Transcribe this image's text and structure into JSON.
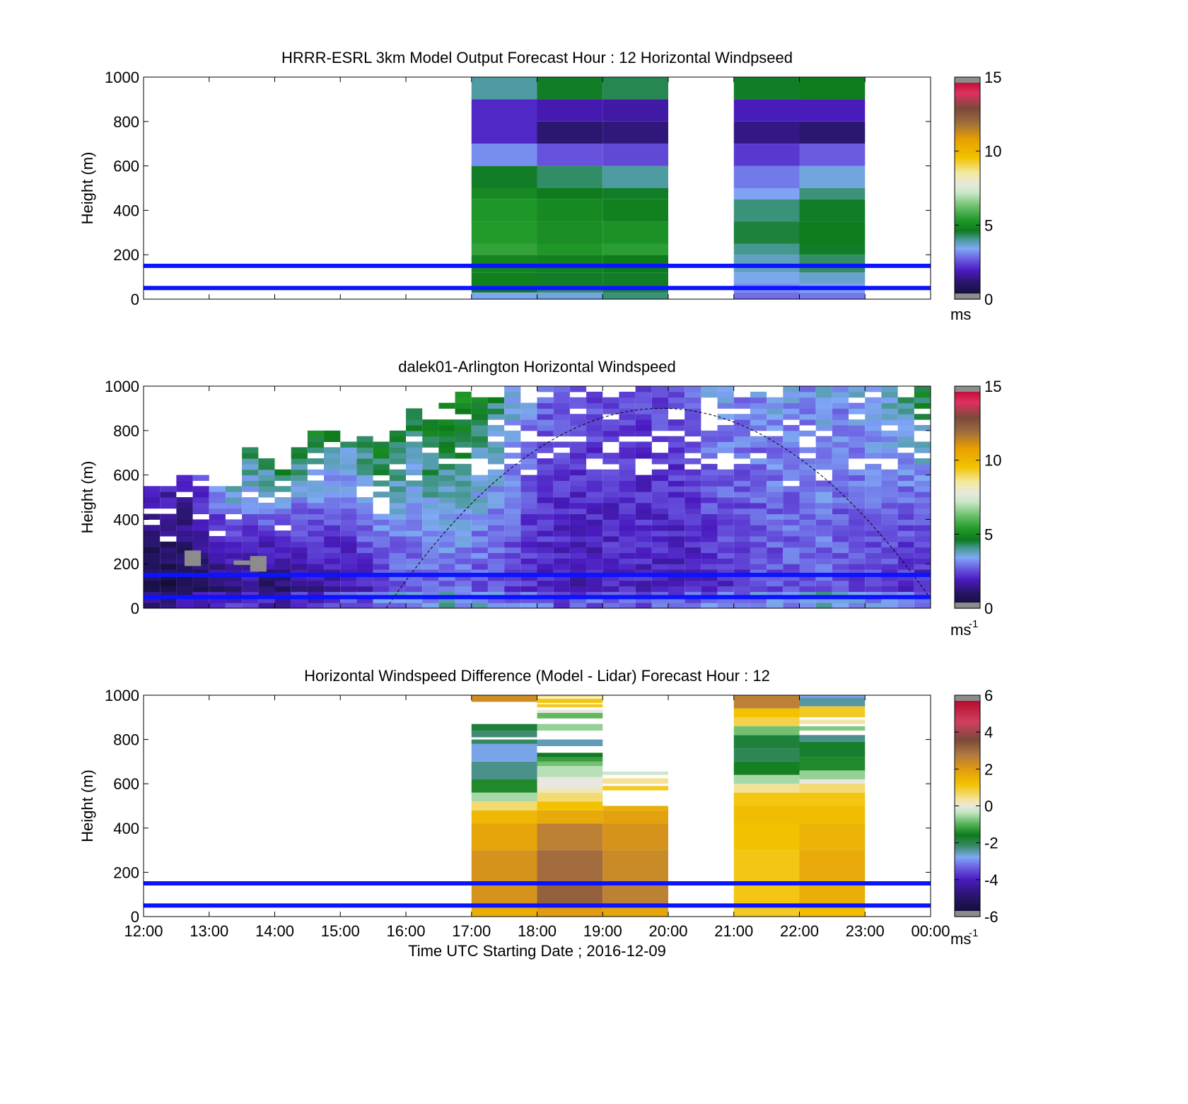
{
  "chart_data": [
    {
      "type": "heatmap",
      "title": "HRRR-ESRL 3km Model Output   Forecast Hour : 12 Horizontal Windpseed",
      "ylabel": "Height (m)",
      "xlim": [
        12,
        24
      ],
      "ylim": [
        0,
        1000
      ],
      "y_ticks": [
        "0",
        "200",
        "400",
        "600",
        "800",
        "1000"
      ],
      "colorbar": {
        "min": 0,
        "max": 15,
        "ticks": [
          "0",
          "5",
          "10",
          "15"
        ],
        "units": "ms"
      },
      "reference_lines_m": [
        50,
        150
      ],
      "columns": [
        {
          "time_start": 17,
          "time_end": 18,
          "rows": [
            {
              "z0": 0,
              "z1": 30,
              "v": 3.5
            },
            {
              "z0": 30,
              "z1": 60,
              "v": 4.7
            },
            {
              "z0": 60,
              "z1": 120,
              "v": 4.8
            },
            {
              "z0": 120,
              "z1": 200,
              "v": 4.9
            },
            {
              "z0": 200,
              "z1": 250,
              "v": 5.6
            },
            {
              "z0": 250,
              "z1": 350,
              "v": 5.4
            },
            {
              "z0": 350,
              "z1": 450,
              "v": 5.3
            },
            {
              "z0": 450,
              "z1": 500,
              "v": 5.0
            },
            {
              "z0": 500,
              "z1": 600,
              "v": 4.6
            },
            {
              "z0": 600,
              "z1": 700,
              "v": 3.2
            },
            {
              "z0": 700,
              "z1": 900,
              "v": 2.1
            },
            {
              "z0": 900,
              "z1": 1000,
              "v": 4.0
            }
          ]
        },
        {
          "time_start": 18,
          "time_end": 19,
          "rows": [
            {
              "z0": 0,
              "z1": 30,
              "v": 3.6
            },
            {
              "z0": 30,
              "z1": 60,
              "v": 4.3
            },
            {
              "z0": 60,
              "z1": 120,
              "v": 4.6
            },
            {
              "z0": 120,
              "z1": 200,
              "v": 4.8
            },
            {
              "z0": 200,
              "z1": 250,
              "v": 5.3
            },
            {
              "z0": 250,
              "z1": 350,
              "v": 5.1
            },
            {
              "z0": 350,
              "z1": 450,
              "v": 5.0
            },
            {
              "z0": 450,
              "z1": 500,
              "v": 4.7
            },
            {
              "z0": 500,
              "z1": 600,
              "v": 4.3
            },
            {
              "z0": 600,
              "z1": 700,
              "v": 2.6
            },
            {
              "z0": 700,
              "z1": 800,
              "v": 1.2
            },
            {
              "z0": 800,
              "z1": 900,
              "v": 1.8
            },
            {
              "z0": 900,
              "z1": 1000,
              "v": 4.6
            }
          ]
        },
        {
          "time_start": 19,
          "time_end": 20,
          "rows": [
            {
              "z0": 0,
              "z1": 30,
              "v": 4.2
            },
            {
              "z0": 30,
              "z1": 60,
              "v": 4.5
            },
            {
              "z0": 60,
              "z1": 120,
              "v": 4.6
            },
            {
              "z0": 120,
              "z1": 200,
              "v": 4.7
            },
            {
              "z0": 200,
              "z1": 250,
              "v": 5.5
            },
            {
              "z0": 250,
              "z1": 350,
              "v": 5.2
            },
            {
              "z0": 350,
              "z1": 450,
              "v": 4.8
            },
            {
              "z0": 450,
              "z1": 500,
              "v": 4.6
            },
            {
              "z0": 500,
              "z1": 600,
              "v": 4.0
            },
            {
              "z0": 600,
              "z1": 700,
              "v": 2.5
            },
            {
              "z0": 700,
              "z1": 800,
              "v": 1.3
            },
            {
              "z0": 800,
              "z1": 900,
              "v": 1.7
            },
            {
              "z0": 900,
              "z1": 1000,
              "v": 4.4
            }
          ]
        },
        {
          "time_start": 21,
          "time_end": 22,
          "rows": [
            {
              "z0": 0,
              "z1": 30,
              "v": 2.9
            },
            {
              "z0": 30,
              "z1": 70,
              "v": 3.2
            },
            {
              "z0": 70,
              "z1": 120,
              "v": 3.5
            },
            {
              "z0": 120,
              "z1": 200,
              "v": 3.8
            },
            {
              "z0": 200,
              "z1": 250,
              "v": 4.1
            },
            {
              "z0": 250,
              "z1": 350,
              "v": 4.5
            },
            {
              "z0": 350,
              "z1": 450,
              "v": 4.2
            },
            {
              "z0": 450,
              "z1": 500,
              "v": 3.4
            },
            {
              "z0": 500,
              "z1": 600,
              "v": 3.0
            },
            {
              "z0": 600,
              "z1": 700,
              "v": 2.3
            },
            {
              "z0": 700,
              "z1": 800,
              "v": 1.4
            },
            {
              "z0": 800,
              "z1": 900,
              "v": 1.9
            },
            {
              "z0": 900,
              "z1": 1000,
              "v": 4.6
            }
          ]
        },
        {
          "time_start": 22,
          "time_end": 23,
          "rows": [
            {
              "z0": 0,
              "z1": 30,
              "v": 3.0
            },
            {
              "z0": 30,
              "z1": 70,
              "v": 3.4
            },
            {
              "z0": 70,
              "z1": 120,
              "v": 3.7
            },
            {
              "z0": 120,
              "z1": 200,
              "v": 4.3
            },
            {
              "z0": 200,
              "z1": 250,
              "v": 4.6
            },
            {
              "z0": 250,
              "z1": 350,
              "v": 4.7
            },
            {
              "z0": 350,
              "z1": 450,
              "v": 4.6
            },
            {
              "z0": 450,
              "z1": 500,
              "v": 4.2
            },
            {
              "z0": 500,
              "z1": 600,
              "v": 3.6
            },
            {
              "z0": 600,
              "z1": 700,
              "v": 2.7
            },
            {
              "z0": 700,
              "z1": 800,
              "v": 1.2
            },
            {
              "z0": 800,
              "z1": 900,
              "v": 1.9
            },
            {
              "z0": 900,
              "z1": 1000,
              "v": 4.7
            }
          ]
        }
      ]
    },
    {
      "type": "heatmap",
      "title": "dalek01-Arlington  Horizontal Windspeed",
      "ylabel": "Height (m)",
      "xlim": [
        12,
        24
      ],
      "ylim": [
        0,
        1000
      ],
      "y_ticks": [
        "0",
        "200",
        "400",
        "600",
        "800",
        "1000"
      ],
      "colorbar": {
        "min": 0,
        "max": 15,
        "ticks": [
          "0",
          "5",
          "10",
          "15"
        ],
        "units": "ms",
        "units_superscript": "-1"
      },
      "reference_lines_m": [
        50,
        150
      ],
      "profile_interval_hours": 0.25,
      "max_height_per_profile_m": [
        540,
        535,
        585,
        590,
        530,
        550,
        705,
        665,
        620,
        710,
        780,
        790,
        790,
        790,
        730,
        800,
        880,
        850,
        910,
        960,
        965,
        960,
        980,
        985,
        990,
        1000,
        995,
        995,
        990,
        995,
        1000,
        1000,
        1000,
        1000,
        990,
        985,
        980,
        990,
        1000,
        995,
        1000,
        1000,
        1000,
        1000,
        1000,
        1000,
        1000,
        1000
      ],
      "low_level_speed_per_profile_ms": [
        0.6,
        0.5,
        0.6,
        0.8,
        1.0,
        1.2,
        1.3,
        1.0,
        1.1,
        1.2,
        1.4,
        1.5,
        1.6,
        1.9,
        2.1,
        2.4,
        2.6,
        2.7,
        2.8,
        2.7,
        2.6,
        2.5,
        2.3,
        2.1,
        2.0,
        1.9,
        1.8,
        1.9,
        2.0,
        2.1,
        2.0,
        2.0,
        1.9,
        2.0,
        2.1,
        2.2,
        2.3,
        2.4,
        2.5,
        2.6,
        2.7,
        2.8,
        2.6,
        2.5,
        2.3,
        2.2,
        2.1,
        2.0
      ],
      "upper_level_speed_per_profile_ms": [
        1.8,
        2.0,
        2.2,
        2.6,
        3.2,
        4.0,
        4.5,
        4.6,
        4.4,
        4.7,
        4.8,
        4.6,
        4.3,
        4.6,
        4.9,
        4.8,
        4.5,
        5.0,
        5.2,
        5.4,
        4.9,
        4.4,
        3.8,
        3.3,
        2.9,
        2.8,
        2.7,
        2.6,
        2.5,
        2.4,
        2.4,
        2.6,
        2.7,
        3.0,
        3.3,
        3.4,
        3.2,
        3.3,
        3.5,
        3.4,
        3.2,
        3.5,
        3.3,
        3.6,
        3.8,
        4.0,
        4.3,
        4.8
      ],
      "missing_data_patches": [
        {
          "time": 12.75,
          "z0": 190,
          "z1": 260
        },
        {
          "time": 13.5,
          "z0": 195,
          "z1": 215
        },
        {
          "time": 13.75,
          "z0": 165,
          "z1": 235
        }
      ],
      "solar_elevation_curve_peak": {
        "time": 19.9,
        "height_m": 900
      }
    },
    {
      "type": "heatmap",
      "title": "Horizontal Windspeed Difference (Model - Lidar) Forecast Hour : 12",
      "xlabel": "Time UTC  Starting Date ; 2016-12-09",
      "ylabel": "Height (m)",
      "x_ticks": [
        "12:00",
        "13:00",
        "14:00",
        "15:00",
        "16:00",
        "17:00",
        "18:00",
        "19:00",
        "20:00",
        "21:00",
        "22:00",
        "23:00",
        "00:00"
      ],
      "xlim": [
        12,
        24
      ],
      "ylim": [
        0,
        1000
      ],
      "y_ticks": [
        "0",
        "200",
        "400",
        "600",
        "800",
        "1000"
      ],
      "colorbar": {
        "min": -6,
        "max": 6,
        "ticks": [
          "-6",
          "-4",
          "-2",
          "0",
          "2",
          "4",
          "6"
        ],
        "units": "ms",
        "units_superscript": "-1"
      },
      "reference_lines_m": [
        50,
        150
      ],
      "columns": [
        {
          "time_start": 17,
          "time_end": 18,
          "rows": [
            {
              "z0": 0,
              "z1": 40,
              "v": 1.6
            },
            {
              "z0": 40,
              "z1": 150,
              "v": 2.2
            },
            {
              "z0": 150,
              "z1": 300,
              "v": 2.2
            },
            {
              "z0": 300,
              "z1": 420,
              "v": 1.8
            },
            {
              "z0": 420,
              "z1": 480,
              "v": 1.4
            },
            {
              "z0": 480,
              "z1": 520,
              "v": 0.6
            },
            {
              "z0": 520,
              "z1": 560,
              "v": -0.5
            },
            {
              "z0": 560,
              "z1": 620,
              "v": -1.4
            },
            {
              "z0": 620,
              "z1": 700,
              "v": -2.3
            },
            {
              "z0": 700,
              "z1": 780,
              "v": -2.7
            },
            {
              "z0": 780,
              "z1": 800,
              "v": -2.1
            },
            {
              "z0": 810,
              "z1": 840,
              "v": -2.2
            },
            {
              "z0": 840,
              "z1": 870,
              "v": -1.8
            },
            {
              "z0": 970,
              "z1": 1000,
              "v": 2.3
            }
          ]
        },
        {
          "time_start": 18,
          "time_end": 19,
          "rows": [
            {
              "z0": 0,
              "z1": 40,
              "v": 2.0
            },
            {
              "z0": 40,
              "z1": 150,
              "v": 3.2
            },
            {
              "z0": 150,
              "z1": 300,
              "v": 3.0
            },
            {
              "z0": 300,
              "z1": 420,
              "v": 2.6
            },
            {
              "z0": 420,
              "z1": 480,
              "v": 1.7
            },
            {
              "z0": 480,
              "z1": 520,
              "v": 1.2
            },
            {
              "z0": 520,
              "z1": 560,
              "v": 0.6
            },
            {
              "z0": 560,
              "z1": 585,
              "v": 0.2
            },
            {
              "z0": 585,
              "z1": 630,
              "v": 0.0
            },
            {
              "z0": 630,
              "z1": 680,
              "v": -0.4
            },
            {
              "z0": 680,
              "z1": 700,
              "v": -0.8
            },
            {
              "z0": 700,
              "z1": 720,
              "v": -1.2
            },
            {
              "z0": 720,
              "z1": 740,
              "v": -1.6
            },
            {
              "z0": 770,
              "z1": 800,
              "v": -2.5
            },
            {
              "z0": 840,
              "z1": 870,
              "v": -0.6
            },
            {
              "z0": 895,
              "z1": 930,
              "v": -0.9
            },
            {
              "z0": 920,
              "z1": 935,
              "v": 0.0
            },
            {
              "z0": 945,
              "z1": 960,
              "v": 1.0
            },
            {
              "z0": 965,
              "z1": 985,
              "v": 1.1
            },
            {
              "z0": 990,
              "z1": 1000,
              "v": 0.4
            }
          ]
        },
        {
          "time_start": 19,
          "time_end": 20,
          "rows": [
            {
              "z0": 0,
              "z1": 40,
              "v": 1.8
            },
            {
              "z0": 40,
              "z1": 150,
              "v": 2.6
            },
            {
              "z0": 150,
              "z1": 300,
              "v": 2.4
            },
            {
              "z0": 300,
              "z1": 420,
              "v": 2.2
            },
            {
              "z0": 420,
              "z1": 480,
              "v": 1.9
            },
            {
              "z0": 480,
              "z1": 500,
              "v": 1.6
            },
            {
              "z0": 570,
              "z1": 590,
              "v": 1.0
            },
            {
              "z0": 600,
              "z1": 625,
              "v": 0.4
            },
            {
              "z0": 640,
              "z1": 655,
              "v": -0.2
            }
          ]
        },
        {
          "time_start": 21,
          "time_end": 22,
          "rows": [
            {
              "z0": 0,
              "z1": 40,
              "v": 1.0
            },
            {
              "z0": 40,
              "z1": 150,
              "v": 1.1
            },
            {
              "z0": 150,
              "z1": 300,
              "v": 1.1
            },
            {
              "z0": 300,
              "z1": 420,
              "v": 1.2
            },
            {
              "z0": 420,
              "z1": 500,
              "v": 1.3
            },
            {
              "z0": 500,
              "z1": 560,
              "v": 1.1
            },
            {
              "z0": 560,
              "z1": 600,
              "v": 0.4
            },
            {
              "z0": 600,
              "z1": 640,
              "v": -0.5
            },
            {
              "z0": 640,
              "z1": 700,
              "v": -1.5
            },
            {
              "z0": 700,
              "z1": 760,
              "v": -2.0
            },
            {
              "z0": 760,
              "z1": 820,
              "v": -1.8
            },
            {
              "z0": 820,
              "z1": 860,
              "v": -0.8
            },
            {
              "z0": 860,
              "z1": 900,
              "v": 0.8
            },
            {
              "z0": 900,
              "z1": 940,
              "v": 1.2
            },
            {
              "z0": 940,
              "z1": 1000,
              "v": 2.6
            }
          ]
        },
        {
          "time_start": 22,
          "time_end": 23,
          "rows": [
            {
              "z0": 0,
              "z1": 40,
              "v": 1.3
            },
            {
              "z0": 40,
              "z1": 150,
              "v": 1.6
            },
            {
              "z0": 150,
              "z1": 300,
              "v": 1.7
            },
            {
              "z0": 300,
              "z1": 420,
              "v": 1.5
            },
            {
              "z0": 420,
              "z1": 500,
              "v": 1.3
            },
            {
              "z0": 500,
              "z1": 560,
              "v": 1.1
            },
            {
              "z0": 560,
              "z1": 600,
              "v": 0.6
            },
            {
              "z0": 600,
              "z1": 620,
              "v": 0.0
            },
            {
              "z0": 620,
              "z1": 660,
              "v": -0.6
            },
            {
              "z0": 660,
              "z1": 720,
              "v": -1.4
            },
            {
              "z0": 720,
              "z1": 790,
              "v": -1.7
            },
            {
              "z0": 790,
              "z1": 820,
              "v": -2.3
            },
            {
              "z0": 840,
              "z1": 860,
              "v": -0.7
            },
            {
              "z0": 870,
              "z1": 890,
              "v": 0.3
            },
            {
              "z0": 900,
              "z1": 950,
              "v": 1.0
            },
            {
              "z0": 950,
              "z1": 990,
              "v": -2.4
            },
            {
              "z0": 990,
              "z1": 1000,
              "v": -2.8
            }
          ]
        }
      ]
    }
  ]
}
